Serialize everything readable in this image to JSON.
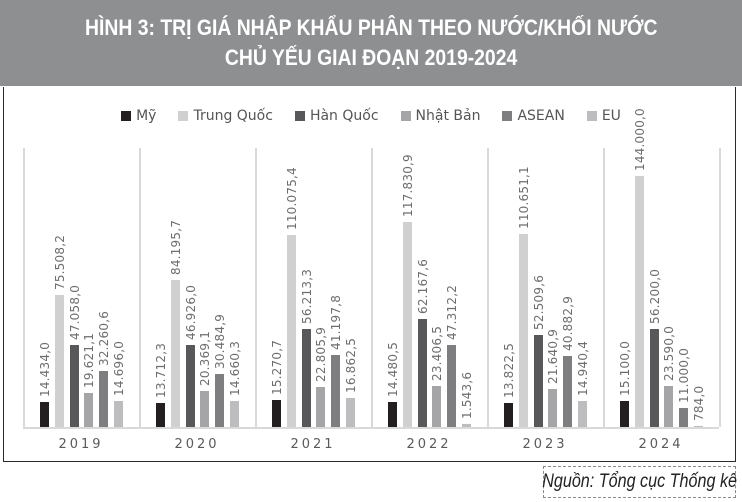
{
  "title": {
    "line1": "HÌNH 3: TRỊ GIÁ NHẬP KHẨU PHÂN THEO NƯỚC/KHỐI NƯỚC",
    "line2": "CHỦ YẾU GIAI ĐOẠN 2019-2024"
  },
  "source": "Nguồn: Tổng cục Thống kê",
  "colors": {
    "title_bg": "#8e8f91",
    "My": "#231f20",
    "TrungQuoc": "#d0d0d0",
    "HanQuoc": "#58585a",
    "NhatBan": "#a5a5a7",
    "ASEAN": "#7e7e80",
    "EU": "#bdbdbf"
  },
  "chart_data": {
    "type": "bar",
    "title": "HÌNH 3: TRỊ GIÁ NHẬP KHẨU PHÂN THEO NƯỚC/KHỐI NƯỚC CHỦ YẾU GIAI ĐOẠN 2019-2024",
    "xlabel": "",
    "ylabel": "",
    "ylim": [
      0,
      150000
    ],
    "grid": false,
    "legend_position": "top",
    "categories": [
      "2019",
      "2020",
      "2021",
      "2022",
      "2023",
      "2024"
    ],
    "series": [
      {
        "name": "Mỹ",
        "color": "#231f20",
        "values": [
          14434.0,
          13712.3,
          15270.7,
          14480.5,
          13822.5,
          15100.0
        ],
        "labels": [
          "14.434,0",
          "13.712,3",
          "15.270,7",
          "14.480,5",
          "13.822,5",
          "15.100,0"
        ]
      },
      {
        "name": "Trung Quốc",
        "color": "#d0d0d0",
        "values": [
          75508.2,
          84195.7,
          110075.4,
          117830.9,
          110651.1,
          144000.0
        ],
        "labels": [
          "75.508,2",
          "84.195,7",
          "110.075,4",
          "117.830,9",
          "110.651,1",
          "144.000,0"
        ]
      },
      {
        "name": "Hàn Quốc",
        "color": "#58585a",
        "values": [
          47058.0,
          46926.0,
          56213.3,
          62167.6,
          52509.6,
          56200.0
        ],
        "labels": [
          "47.058,0",
          "46.926,0",
          "56.213,3",
          "62.167,6",
          "52.509,6",
          "56.200,0"
        ]
      },
      {
        "name": "Nhật Bản",
        "color": "#a5a5a7",
        "values": [
          19621.1,
          20369.1,
          22805.9,
          23406.5,
          21640.9,
          23590.0
        ],
        "labels": [
          "19.621,1",
          "20.369,1",
          "22.805,9",
          "23.406,5",
          "21.640,9",
          "23.590,0"
        ]
      },
      {
        "name": "ASEAN",
        "color": "#7e7e80",
        "values": [
          32260.6,
          30484.9,
          41197.8,
          47312.2,
          40882.9,
          11000.0
        ],
        "labels": [
          "32.260,6",
          "30.484,9",
          "41.197,8",
          "47.312,2",
          "40.882,9",
          "11.000,0"
        ]
      },
      {
        "name": "EU",
        "color": "#bdbdbf",
        "values": [
          14696.0,
          14660.3,
          16862.5,
          1543.6,
          14940.4,
          784.0
        ],
        "labels": [
          "14.696,0",
          "14.660,3",
          "16.862,5",
          "1.543,6",
          "14.940,4",
          "784,0"
        ]
      }
    ]
  }
}
